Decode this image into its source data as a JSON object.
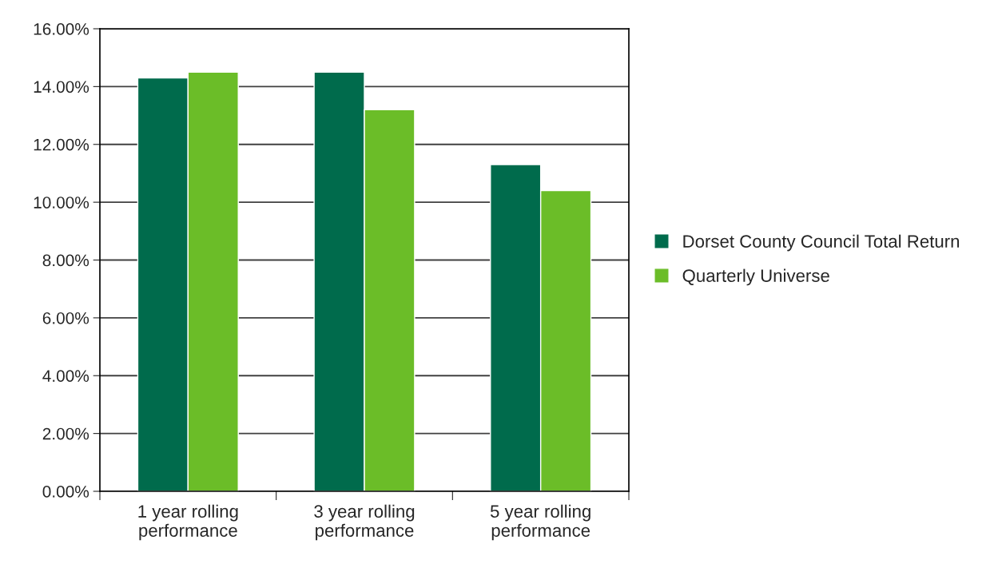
{
  "chart_data": {
    "type": "bar",
    "categories": [
      "1 year rolling\nperformance",
      "3 year rolling\nperformance",
      "5 year rolling\nperformance"
    ],
    "series": [
      {
        "name": "Dorset County Council Total Return",
        "color": "#006b4c",
        "values": [
          14.3,
          14.5,
          11.3
        ]
      },
      {
        "name": "Quarterly Universe",
        "color": "#6bbd28",
        "values": [
          14.5,
          13.2,
          10.4
        ]
      }
    ],
    "ylim": [
      0,
      16
    ],
    "yticks": [
      {
        "value": 0,
        "label": "0.00%"
      },
      {
        "value": 2,
        "label": "2.00%"
      },
      {
        "value": 4,
        "label": "4.00%"
      },
      {
        "value": 6,
        "label": "6.00%"
      },
      {
        "value": 8,
        "label": "8.00%"
      },
      {
        "value": 10,
        "label": "10.00%"
      },
      {
        "value": 12,
        "label": "12.00%"
      },
      {
        "value": 14,
        "label": "14.00%"
      },
      {
        "value": 16,
        "label": "16.00%"
      }
    ],
    "grid": "y",
    "legend": "right"
  }
}
